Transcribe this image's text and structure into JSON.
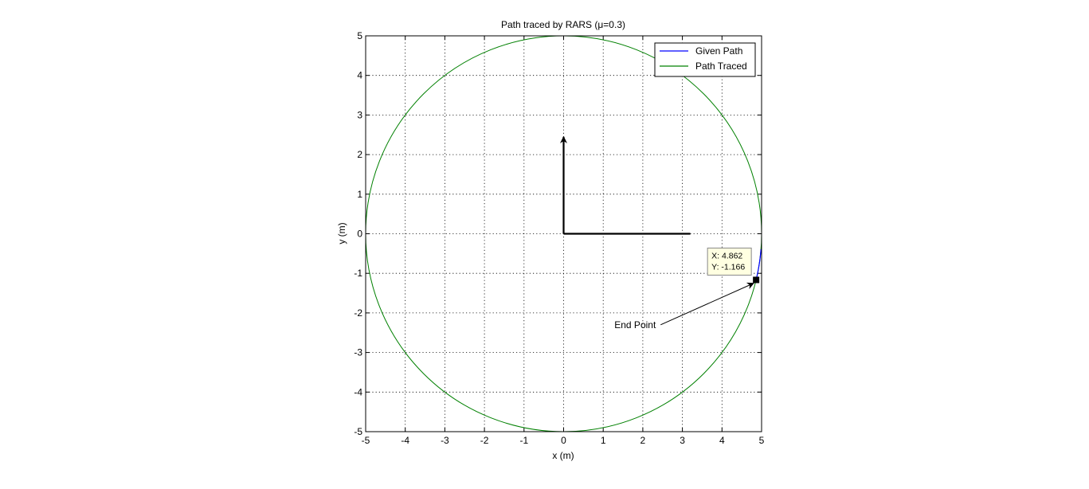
{
  "chart_data": {
    "type": "line",
    "title": "Path traced by RARS (μ=0.3)",
    "xlabel": "x (m)",
    "ylabel": "y (m)",
    "xlim": [
      -5,
      5
    ],
    "ylim": [
      -5,
      5
    ],
    "xticks": [
      -5,
      -4,
      -3,
      -2,
      -1,
      0,
      1,
      2,
      3,
      4,
      5
    ],
    "yticks": [
      -5,
      -4,
      -3,
      -2,
      -1,
      0,
      1,
      2,
      3,
      4,
      5
    ],
    "grid": true,
    "legend": {
      "placement": "top-right",
      "entries": [
        "Given Path",
        "Path Traced"
      ]
    },
    "series": [
      {
        "name": "Given Path",
        "color": "#0000ff",
        "shape": "arc",
        "center": [
          0,
          0
        ],
        "radius": 5,
        "start_deg": -13.5,
        "end_deg": -4.5
      },
      {
        "name": "Path Traced",
        "color": "#008000",
        "shape": "circle",
        "center": [
          0,
          0
        ],
        "radius": 5
      }
    ],
    "arrows": [
      {
        "from": [
          0,
          0
        ],
        "to": [
          0,
          2.45
        ],
        "color": "#000000"
      },
      {
        "from": [
          0,
          0
        ],
        "to": [
          3.2,
          0
        ],
        "color": "#000000"
      }
    ],
    "datatip": {
      "x_label": "X: 4.862",
      "y_label": "Y: -1.166",
      "point": [
        4.862,
        -1.166
      ]
    },
    "annotation": {
      "text": "End Point",
      "anchor": [
        2.45,
        -2.3
      ],
      "target": [
        4.8,
        -1.25
      ]
    }
  }
}
